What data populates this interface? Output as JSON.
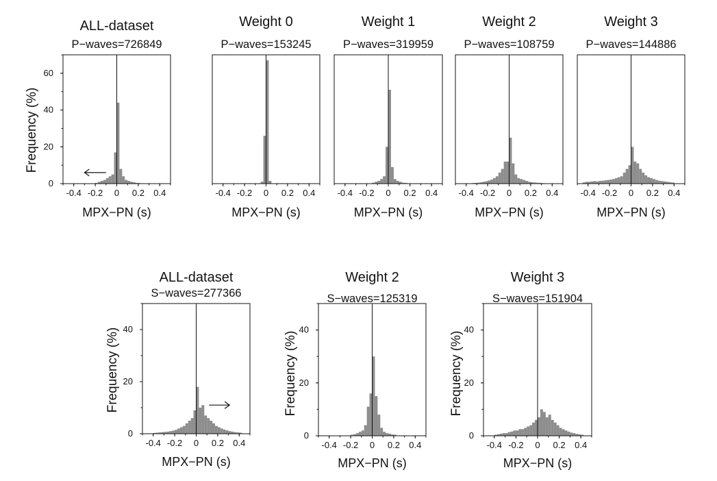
{
  "chart_data": [
    {
      "type": "bar",
      "title": "ALL-dataset",
      "subtitle": "P−waves=726849",
      "xlabel": "MPX−PN (s)",
      "ylabel": "Frequency (%)",
      "xlim": [
        -0.5,
        0.5
      ],
      "ylim": [
        0,
        70
      ],
      "xticks": [
        "-0.4",
        "-0.2",
        "0",
        "0.2",
        "0.4"
      ],
      "yticks": [
        "0",
        "20",
        "40",
        "60"
      ],
      "bin_width": 0.025,
      "bins": [
        [
          -0.2,
          0.4
        ],
        [
          -0.175,
          1
        ],
        [
          -0.15,
          1.5
        ],
        [
          -0.125,
          2
        ],
        [
          -0.1,
          3
        ],
        [
          -0.075,
          4
        ],
        [
          -0.05,
          5
        ],
        [
          -0.025,
          17
        ],
        [
          0,
          44
        ],
        [
          0.025,
          8
        ],
        [
          0.05,
          4
        ],
        [
          0.075,
          2
        ],
        [
          0.1,
          1.5
        ],
        [
          0.125,
          1
        ],
        [
          0.15,
          0.7
        ],
        [
          0.175,
          0.4
        ],
        [
          0.2,
          0.3
        ]
      ],
      "annotation": "arrow pointing left"
    },
    {
      "type": "bar",
      "title": "Weight 0",
      "subtitle": "P−waves=153245",
      "xlabel": "MPX−PN (s)",
      "ylabel": "",
      "xlim": [
        -0.5,
        0.5
      ],
      "ylim": [
        0,
        70
      ],
      "xticks": [
        "-0.4",
        "-0.2",
        "0",
        "0.2",
        "0.4"
      ],
      "yticks": [],
      "bin_width": 0.025,
      "bins": [
        [
          -0.05,
          1
        ],
        [
          -0.025,
          26
        ],
        [
          0,
          67
        ],
        [
          0.025,
          1.5
        ]
      ]
    },
    {
      "type": "bar",
      "title": "Weight 1",
      "subtitle": "P−waves=319959",
      "xlabel": "MPX−PN (s)",
      "ylabel": "",
      "xlim": [
        -0.5,
        0.5
      ],
      "ylim": [
        0,
        70
      ],
      "xticks": [
        "-0.4",
        "-0.2",
        "0",
        "0.2",
        "0.4"
      ],
      "yticks": [],
      "bin_width": 0.025,
      "bins": [
        [
          -0.15,
          0.5
        ],
        [
          -0.125,
          1
        ],
        [
          -0.1,
          1.5
        ],
        [
          -0.075,
          2.5
        ],
        [
          -0.05,
          4
        ],
        [
          -0.025,
          20
        ],
        [
          0,
          51
        ],
        [
          0.025,
          9
        ],
        [
          0.05,
          2.5
        ],
        [
          0.075,
          1.5
        ],
        [
          0.1,
          1
        ],
        [
          0.125,
          0.5
        ],
        [
          0.15,
          0.4
        ]
      ]
    },
    {
      "type": "bar",
      "title": "Weight 2",
      "subtitle": "P−waves=108759",
      "xlabel": "MPX−PN (s)",
      "ylabel": "",
      "xlim": [
        -0.5,
        0.5
      ],
      "ylim": [
        0,
        70
      ],
      "xticks": [
        "-0.4",
        "-0.2",
        "0",
        "0.2",
        "0.4"
      ],
      "yticks": [],
      "bin_width": 0.025,
      "bins": [
        [
          -0.35,
          0.3
        ],
        [
          -0.325,
          0.4
        ],
        [
          -0.3,
          0.5
        ],
        [
          -0.275,
          0.7
        ],
        [
          -0.25,
          1
        ],
        [
          -0.225,
          1.3
        ],
        [
          -0.2,
          1.7
        ],
        [
          -0.175,
          2.2
        ],
        [
          -0.15,
          3
        ],
        [
          -0.125,
          4
        ],
        [
          -0.1,
          6
        ],
        [
          -0.075,
          8
        ],
        [
          -0.05,
          12
        ],
        [
          -0.025,
          12
        ],
        [
          0,
          25
        ],
        [
          0.025,
          11
        ],
        [
          0.05,
          5
        ],
        [
          0.075,
          3
        ],
        [
          0.1,
          2.5
        ],
        [
          0.125,
          2
        ],
        [
          0.15,
          1.5
        ],
        [
          0.175,
          1
        ],
        [
          0.2,
          0.8
        ],
        [
          0.225,
          0.6
        ],
        [
          0.25,
          0.5
        ],
        [
          0.275,
          0.4
        ],
        [
          0.3,
          0.3
        ]
      ]
    },
    {
      "type": "bar",
      "title": "Weight 3",
      "subtitle": "P−waves=144886",
      "xlabel": "MPX−PN (s)",
      "ylabel": "",
      "xlim": [
        -0.5,
        0.5
      ],
      "ylim": [
        0,
        70
      ],
      "xticks": [
        "-0.4",
        "-0.2",
        "0",
        "0.2",
        "0.4"
      ],
      "yticks": [],
      "bin_width": 0.025,
      "bins": [
        [
          -0.45,
          0.7
        ],
        [
          -0.425,
          1
        ],
        [
          -0.4,
          1
        ],
        [
          -0.375,
          1.2
        ],
        [
          -0.35,
          1.4
        ],
        [
          -0.325,
          1.2
        ],
        [
          -0.3,
          1.5
        ],
        [
          -0.275,
          1.6
        ],
        [
          -0.25,
          1.8
        ],
        [
          -0.225,
          2
        ],
        [
          -0.2,
          2.2
        ],
        [
          -0.175,
          2.5
        ],
        [
          -0.15,
          3
        ],
        [
          -0.125,
          3.5
        ],
        [
          -0.1,
          4
        ],
        [
          -0.075,
          6
        ],
        [
          -0.05,
          8
        ],
        [
          -0.025,
          10
        ],
        [
          0,
          20
        ],
        [
          0.025,
          12
        ],
        [
          0.05,
          11
        ],
        [
          0.075,
          8
        ],
        [
          0.1,
          6
        ],
        [
          0.125,
          4.5
        ],
        [
          0.15,
          3.5
        ],
        [
          0.175,
          3
        ],
        [
          0.2,
          2.5
        ],
        [
          0.225,
          2
        ],
        [
          0.25,
          1.6
        ],
        [
          0.275,
          1.4
        ],
        [
          0.3,
          1.2
        ],
        [
          0.325,
          1
        ],
        [
          0.35,
          0.8
        ],
        [
          0.375,
          0.6
        ]
      ]
    },
    {
      "type": "bar",
      "title": "ALL-dataset",
      "subtitle": "S−waves=277366",
      "xlabel": "MPX−PN (s)",
      "ylabel": "Frequency (%)",
      "xlim": [
        -0.5,
        0.5
      ],
      "ylim": [
        0,
        50
      ],
      "xticks": [
        "-0.4",
        "-0.2",
        "0",
        "0.2",
        "0.4"
      ],
      "yticks": [
        "0",
        "20",
        "40"
      ],
      "bin_width": 0.025,
      "bins": [
        [
          -0.4,
          0.3
        ],
        [
          -0.375,
          0.4
        ],
        [
          -0.35,
          0.5
        ],
        [
          -0.325,
          0.6
        ],
        [
          -0.3,
          0.7
        ],
        [
          -0.275,
          0.8
        ],
        [
          -0.25,
          1
        ],
        [
          -0.225,
          1.2
        ],
        [
          -0.2,
          1.5
        ],
        [
          -0.175,
          2
        ],
        [
          -0.15,
          2.5
        ],
        [
          -0.125,
          3
        ],
        [
          -0.1,
          4
        ],
        [
          -0.075,
          5
        ],
        [
          -0.05,
          6
        ],
        [
          -0.025,
          9
        ],
        [
          0,
          18
        ],
        [
          0.025,
          10
        ],
        [
          0.05,
          11
        ],
        [
          0.075,
          7
        ],
        [
          0.1,
          6
        ],
        [
          0.125,
          5
        ],
        [
          0.15,
          4
        ],
        [
          0.175,
          3
        ],
        [
          0.2,
          2.5
        ],
        [
          0.225,
          2
        ],
        [
          0.25,
          1.6
        ],
        [
          0.275,
          1.3
        ],
        [
          0.3,
          1
        ],
        [
          0.325,
          0.8
        ],
        [
          0.35,
          0.6
        ],
        [
          0.375,
          0.5
        ],
        [
          0.4,
          0.4
        ]
      ],
      "annotation": "arrow pointing right"
    },
    {
      "type": "bar",
      "title": "Weight 2",
      "subtitle": "S−waves=125319",
      "xlabel": "MPX−PN (s)",
      "ylabel": "Frequency (%)",
      "xlim": [
        -0.5,
        0.5
      ],
      "ylim": [
        0,
        50
      ],
      "xticks": [
        "-0.4",
        "-0.2",
        "0",
        "0.2",
        "0.4"
      ],
      "yticks": [
        "0",
        "20",
        "40"
      ],
      "bin_width": 0.025,
      "bins": [
        [
          -0.2,
          0.4
        ],
        [
          -0.175,
          0.6
        ],
        [
          -0.15,
          1
        ],
        [
          -0.125,
          1.5
        ],
        [
          -0.1,
          2
        ],
        [
          -0.075,
          4
        ],
        [
          -0.05,
          11
        ],
        [
          -0.025,
          16
        ],
        [
          0,
          30
        ],
        [
          0.025,
          15
        ],
        [
          0.05,
          8
        ],
        [
          0.075,
          3
        ],
        [
          0.1,
          1.5
        ],
        [
          0.125,
          1
        ],
        [
          0.15,
          0.8
        ],
        [
          0.175,
          0.5
        ],
        [
          0.2,
          0.4
        ]
      ]
    },
    {
      "type": "bar",
      "title": "Weight 3",
      "subtitle": "S−waves=151904",
      "xlabel": "MPX−PN (s)",
      "ylabel": "Frequency (%)",
      "xlim": [
        -0.5,
        0.5
      ],
      "ylim": [
        0,
        50
      ],
      "xticks": [
        "-0.4",
        "-0.2",
        "0",
        "0.2",
        "0.4"
      ],
      "yticks": [
        "0",
        "20",
        "40"
      ],
      "bin_width": 0.025,
      "bins": [
        [
          -0.4,
          0.4
        ],
        [
          -0.375,
          0.6
        ],
        [
          -0.35,
          0.8
        ],
        [
          -0.325,
          1
        ],
        [
          -0.3,
          1
        ],
        [
          -0.275,
          1.4
        ],
        [
          -0.25,
          1.6
        ],
        [
          -0.225,
          2
        ],
        [
          -0.2,
          2
        ],
        [
          -0.175,
          2.5
        ],
        [
          -0.15,
          2.5
        ],
        [
          -0.125,
          3
        ],
        [
          -0.1,
          3.5
        ],
        [
          -0.075,
          4
        ],
        [
          -0.05,
          5
        ],
        [
          -0.025,
          6
        ],
        [
          0,
          7
        ],
        [
          0.025,
          10
        ],
        [
          0.05,
          9
        ],
        [
          0.075,
          7
        ],
        [
          0.1,
          8
        ],
        [
          0.125,
          6
        ],
        [
          0.15,
          5
        ],
        [
          0.175,
          4
        ],
        [
          0.2,
          3
        ],
        [
          0.225,
          2.5
        ],
        [
          0.25,
          2
        ],
        [
          0.275,
          1.6
        ],
        [
          0.3,
          1.2
        ],
        [
          0.325,
          1
        ],
        [
          0.35,
          0.7
        ],
        [
          0.375,
          0.5
        ],
        [
          0.4,
          0.4
        ]
      ]
    }
  ]
}
